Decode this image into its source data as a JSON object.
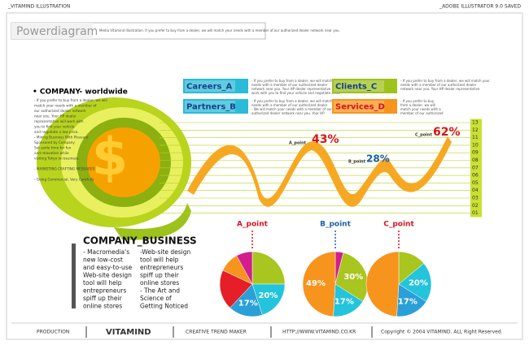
{
  "header": {
    "left": "_VITAMIND ILLUSTRATION",
    "right": "_ADOBE ILLUSTRATOR 9.0 SAVED"
  },
  "title": "Powerdiagram",
  "intro": "Media Vitamind Illustration. If you prefer to buy from a dealer, we will match your needs with a member of our authorized dealer network near you.",
  "company_heading": "• COMPANY- worldwide",
  "company_text": [
    "- If you prefer to buy from a dealer, we will",
    "match your needs with a member of",
    "our authorized dealer network",
    "near you. Your HP dealer",
    "representative will work with",
    "you to find your vehicle",
    "and negotiate a low price.",
    "- Mining Business With Pleasure",
    "Sponsored by Company",
    "Set aside time for fun",
    "and relaxation while",
    "visiting Tokyo on business.",
    "",
    "- MARKETING CRAFTING MESSAGES",
    "",
    "- Going Commercial, Very Carefully"
  ],
  "legend": [
    {
      "label": "Careers_A",
      "color": "#2bbbd8",
      "text": [
        "- If you prefer to buy from a dealer, we will match your",
        "needs with a member of our authorized dealer",
        "network near you. Your HP dealer representative will",
        "work with you to find your vehicle and negotiate a low"
      ]
    },
    {
      "label": "Partners_B",
      "color": "#2bbbd8",
      "text": [
        "- If you prefer to buy from a dealer, we will match your",
        "needs with a member of our authorized dealer",
        "- We will match your needs with a member of our",
        "authorized dealer network near you. Your HP"
      ]
    },
    {
      "label": "Clients_C",
      "color": "#9ec21c",
      "text": [
        "- If you prefer to buy from a dealer, we will match your",
        "needs with a member of our authorized dealer",
        "network near you. Your HP dealer representative"
      ]
    },
    {
      "label": "Services_D",
      "color": "#f7941d",
      "text": [
        "- If you prefer to buy",
        "from a dealer, we will",
        "match your needs with a",
        "member of our authorized"
      ]
    }
  ],
  "scale": [
    "13",
    "12",
    "11",
    "10",
    "09",
    "08",
    "07",
    "06",
    "05",
    "04",
    "03",
    "02",
    "01"
  ],
  "points": [
    {
      "name": "A_point",
      "value": "43%"
    },
    {
      "name": "B_point",
      "value": "28%"
    },
    {
      "name": "C_point",
      "value": "62%"
    }
  ],
  "business": {
    "heading": "COMPANY_BUSINESS",
    "col1": [
      "- Macromedia's",
      "new low-cost",
      "and easy-to-use",
      "Web-site design",
      "tool will help",
      "entrepreneurs",
      "spiff up their",
      "online stores"
    ],
    "col2": [
      "-Web-site design",
      "tool will help",
      "entrepreneurs",
      "spiff up their",
      "online stores",
      "- The Art and",
      "Science of",
      "Getting Noticed"
    ]
  },
  "pies": [
    {
      "name": "A_point",
      "color": "#d7141e",
      "values": [
        25,
        20,
        17,
        20,
        10,
        8
      ],
      "value_labels": [
        null,
        "20%",
        "17%",
        null,
        null,
        null
      ],
      "colors": [
        "#a8c520",
        "#23c4dc",
        "#2a9fd8",
        "#e61e28",
        "#f7941d",
        "#d21f8c"
      ]
    },
    {
      "name": "B_point",
      "color": "#1b5fa8",
      "values": [
        4,
        30,
        17,
        49
      ],
      "value_labels": [
        null,
        "30%",
        "17%",
        "49%"
      ],
      "colors": [
        "#d21f8c",
        "#a8c520",
        "#23c4dc",
        "#f7941d"
      ]
    },
    {
      "name": "C_point",
      "color": "#d7141e",
      "values": [
        14,
        20,
        17,
        49
      ],
      "value_labels": [
        null,
        "20%",
        "17%",
        null
      ],
      "colors": [
        "#a8c520",
        "#23c4dc",
        "#2a9fd8",
        "#f7941d"
      ]
    }
  ],
  "footer": {
    "production": "PRODUCTION",
    "brand": "VITAMIND",
    "tagline": "CREATIVE TREND MAKER",
    "url": "HTTP://WWW.VITAMIND.CO.KR",
    "copyright": "Copyright © 2004 VITAMIND. ALL Right Reserved."
  }
}
